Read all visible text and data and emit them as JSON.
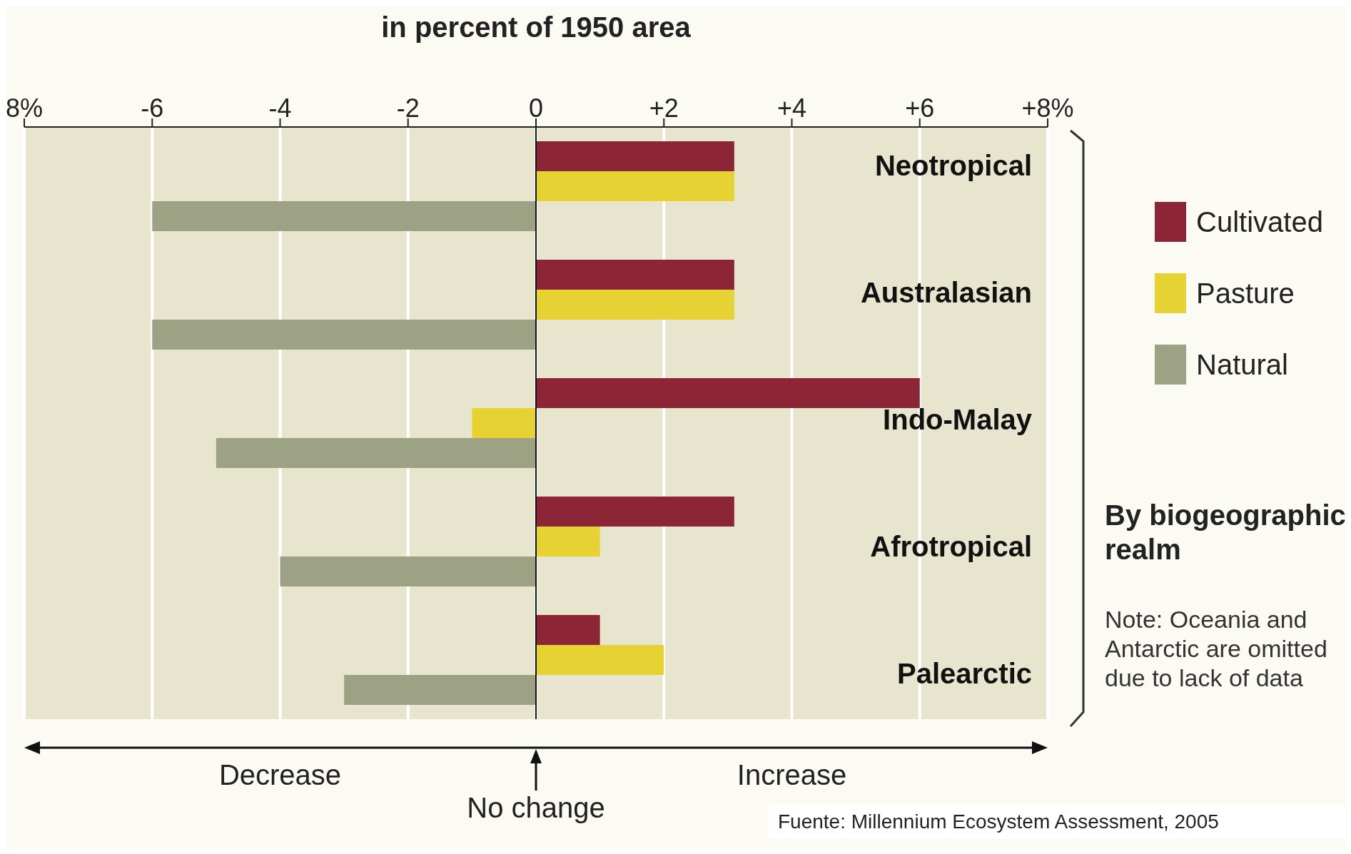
{
  "chart_data": {
    "type": "bar",
    "orientation": "horizontal",
    "xlabel": "in percent of 1950 area",
    "categories": [
      "Neotropical",
      "Australasian",
      "Indo-Malay",
      "Afrotropical",
      "Palearctic"
    ],
    "series": [
      {
        "name": "Cultivated",
        "color": "#8c2637",
        "values": [
          3.1,
          3.1,
          6.0,
          3.1,
          1.0
        ]
      },
      {
        "name": "Pasture",
        "color": "#e6d333",
        "values": [
          3.1,
          3.1,
          -1.0,
          1.0,
          2.0
        ]
      },
      {
        "name": "Natural",
        "color": "#9ea284",
        "values": [
          -6.0,
          -6.0,
          -5.0,
          -4.0,
          -3.0
        ]
      }
    ],
    "xlim": [
      -8,
      8
    ],
    "xticks": [
      {
        "value": -8,
        "label": "8%"
      },
      -6,
      -4,
      -2,
      0,
      {
        "value": 2,
        "label": "+2"
      },
      {
        "value": 4,
        "label": "+4"
      },
      {
        "value": 6,
        "label": "+6"
      },
      {
        "value": 8,
        "label": "+8%"
      }
    ],
    "grid": "x",
    "legend": "right",
    "annotations": [
      "Decrease",
      "Increase",
      "No change",
      "By biogeographic realm",
      "Note: Oceania and Antarctic are omitted due to lack of data",
      "Fuente: Millennium Ecosystem Assessment, 2005"
    ]
  }
}
